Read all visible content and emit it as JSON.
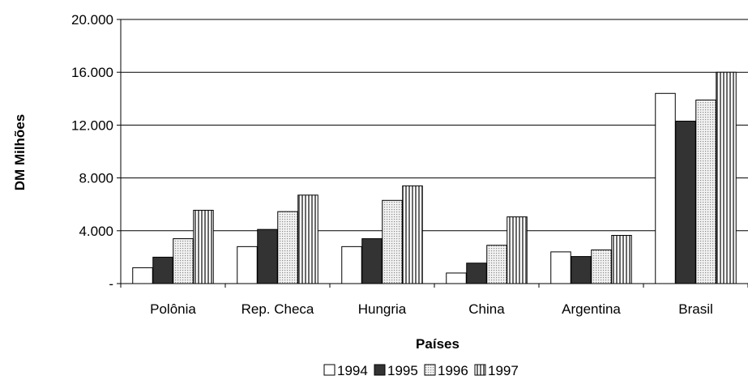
{
  "chart_data": {
    "type": "bar",
    "title": "",
    "xlabel": "Países",
    "ylabel": "DM Milhões",
    "categories": [
      "Polônia",
      "Rep. Checa",
      "Hungria",
      "China",
      "Argentina",
      "Brasil"
    ],
    "series": [
      {
        "name": "1994",
        "values": [
          1200,
          2800,
          2800,
          800,
          2400,
          14400
        ]
      },
      {
        "name": "1995",
        "values": [
          2000,
          4100,
          3400,
          1550,
          2050,
          12300
        ]
      },
      {
        "name": "1996",
        "values": [
          3400,
          5450,
          6300,
          2900,
          2550,
          13900
        ]
      },
      {
        "name": "1997",
        "values": [
          5550,
          6700,
          7400,
          5050,
          3650,
          16000
        ]
      }
    ],
    "ylim": [
      0,
      20000
    ],
    "yticks": [
      0,
      4000,
      8000,
      12000,
      16000,
      20000
    ],
    "ytick_labels": [
      "-",
      "4.000",
      "8.000",
      "12.000",
      "16.000",
      "20.000"
    ],
    "grid": "horizontal",
    "legend_position": "bottom",
    "colors": {
      "1994": "#ffffff",
      "1995": "#333333",
      "1996": "pattern-dots",
      "1997": "pattern-vertical-stripes"
    }
  }
}
